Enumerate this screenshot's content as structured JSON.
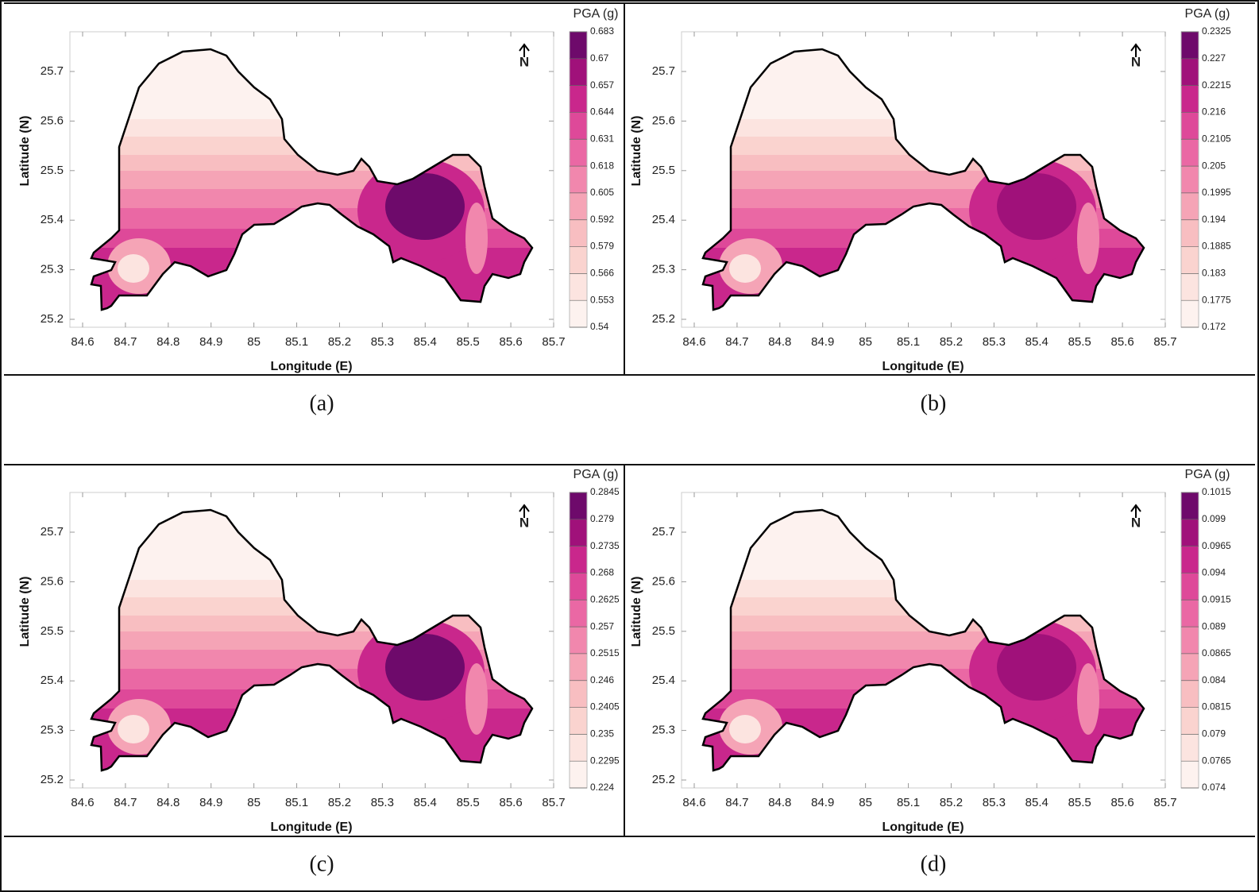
{
  "panels": [
    {
      "caption": "(a)",
      "xlabel": "Longitude (E)",
      "ylabel": "Latitude (N)",
      "colorbar_label": "PGA (g)",
      "north": "N",
      "xticks": [
        84.6,
        84.7,
        84.8,
        84.9,
        85,
        85.1,
        85.2,
        85.3,
        85.4,
        85.5,
        85.6,
        85.7
      ],
      "yticks": [
        25.2,
        25.3,
        25.4,
        25.5,
        25.6,
        25.7
      ],
      "levels": [
        0.54,
        0.553,
        0.566,
        0.579,
        0.592,
        0.605,
        0.618,
        0.631,
        0.644,
        0.657,
        0.67,
        0.683
      ]
    },
    {
      "caption": "(b)",
      "xlabel": "Longitude (E)",
      "ylabel": "Latitude (N)",
      "colorbar_label": "PGA (g)",
      "north": "N",
      "xticks": [
        84.6,
        84.7,
        84.8,
        84.9,
        85,
        85.1,
        85.2,
        85.3,
        85.4,
        85.5,
        85.6,
        85.7
      ],
      "yticks": [
        25.2,
        25.3,
        25.4,
        25.5,
        25.6,
        25.7
      ],
      "levels": [
        0.172,
        0.1775,
        0.183,
        0.1885,
        0.194,
        0.1995,
        0.205,
        0.2105,
        0.216,
        0.2215,
        0.227,
        0.2325
      ]
    },
    {
      "caption": "(c)",
      "xlabel": "Longitude (E)",
      "ylabel": "Latitude (N)",
      "colorbar_label": "PGA (g)",
      "north": "N",
      "xticks": [
        84.6,
        84.7,
        84.8,
        84.9,
        85,
        85.1,
        85.2,
        85.3,
        85.4,
        85.5,
        85.6,
        85.7
      ],
      "yticks": [
        25.2,
        25.3,
        25.4,
        25.5,
        25.6,
        25.7
      ],
      "levels": [
        0.224,
        0.2295,
        0.235,
        0.2405,
        0.246,
        0.2515,
        0.257,
        0.2625,
        0.268,
        0.2735,
        0.279,
        0.2845
      ]
    },
    {
      "caption": "(d)",
      "xlabel": "Longitude (E)",
      "ylabel": "Latitude (N)",
      "colorbar_label": "PGA (g)",
      "north": "N",
      "xticks": [
        84.6,
        84.7,
        84.8,
        84.9,
        85,
        85.1,
        85.2,
        85.3,
        85.4,
        85.5,
        85.6,
        85.7
      ],
      "yticks": [
        25.2,
        25.3,
        25.4,
        25.5,
        25.6,
        25.7
      ],
      "levels": [
        0.074,
        0.0765,
        0.079,
        0.0815,
        0.084,
        0.0865,
        0.089,
        0.0915,
        0.094,
        0.0965,
        0.099,
        0.1015
      ]
    }
  ],
  "colors": [
    "#fdf2ef",
    "#fce4e0",
    "#fad3cf",
    "#f8bec1",
    "#f5a4b6",
    "#f187ad",
    "#ea68a4",
    "#de4999",
    "#c9278c",
    "#a0117a",
    "#6e0a6b"
  ]
}
